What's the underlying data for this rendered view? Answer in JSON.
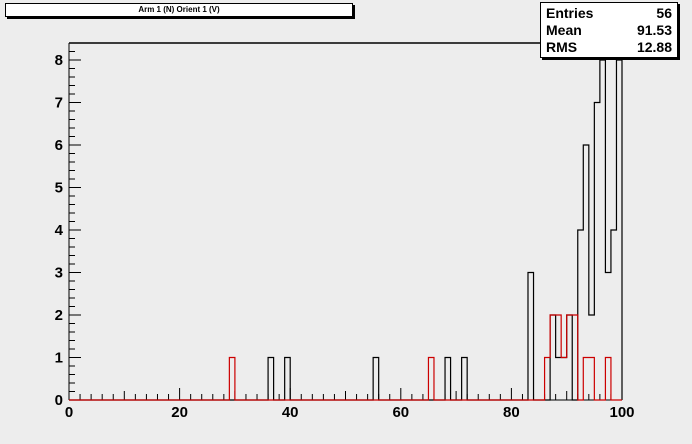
{
  "title": "Arm 1 (N) Orient 1 (V)",
  "stats": [
    {
      "label": "Entries",
      "value": "56"
    },
    {
      "label": "Mean",
      "value": "91.53"
    },
    {
      "label": "RMS",
      "value": "12.88"
    }
  ],
  "colors": {
    "background": "#ededed",
    "frame": "#000000",
    "series_main": "#000000",
    "series_overlay": "#cc0000"
  },
  "chart_data": {
    "type": "histogram",
    "xlim": [
      0,
      100
    ],
    "ylim": [
      0,
      8.4
    ],
    "x_ticks": [
      0,
      20,
      40,
      60,
      80,
      100
    ],
    "y_ticks": [
      0,
      1,
      2,
      3,
      4,
      5,
      6,
      7,
      8
    ],
    "bin_width": 1,
    "series": [
      {
        "color": "#000000",
        "bins": [
          {
            "x": 36,
            "y": 1
          },
          {
            "x": 39,
            "y": 1
          },
          {
            "x": 55,
            "y": 1
          },
          {
            "x": 68,
            "y": 1
          },
          {
            "x": 71,
            "y": 1
          },
          {
            "x": 83,
            "y": 3
          },
          {
            "x": 87,
            "y": 2
          },
          {
            "x": 88,
            "y": 1
          },
          {
            "x": 89,
            "y": 1
          },
          {
            "x": 90,
            "y": 2
          },
          {
            "x": 92,
            "y": 4
          },
          {
            "x": 93,
            "y": 6
          },
          {
            "x": 94,
            "y": 2
          },
          {
            "x": 95,
            "y": 7
          },
          {
            "x": 96,
            "y": 8
          },
          {
            "x": 97,
            "y": 3
          },
          {
            "x": 98,
            "y": 4
          },
          {
            "x": 99,
            "y": 8
          }
        ]
      },
      {
        "color": "#cc0000",
        "bins": [
          {
            "x": 29,
            "y": 1
          },
          {
            "x": 65,
            "y": 1
          },
          {
            "x": 86,
            "y": 1
          },
          {
            "x": 87,
            "y": 2
          },
          {
            "x": 88,
            "y": 2
          },
          {
            "x": 89,
            "y": 1
          },
          {
            "x": 90,
            "y": 2
          },
          {
            "x": 91,
            "y": 2
          },
          {
            "x": 93,
            "y": 1
          },
          {
            "x": 94,
            "y": 1
          },
          {
            "x": 97,
            "y": 1
          }
        ]
      }
    ]
  }
}
